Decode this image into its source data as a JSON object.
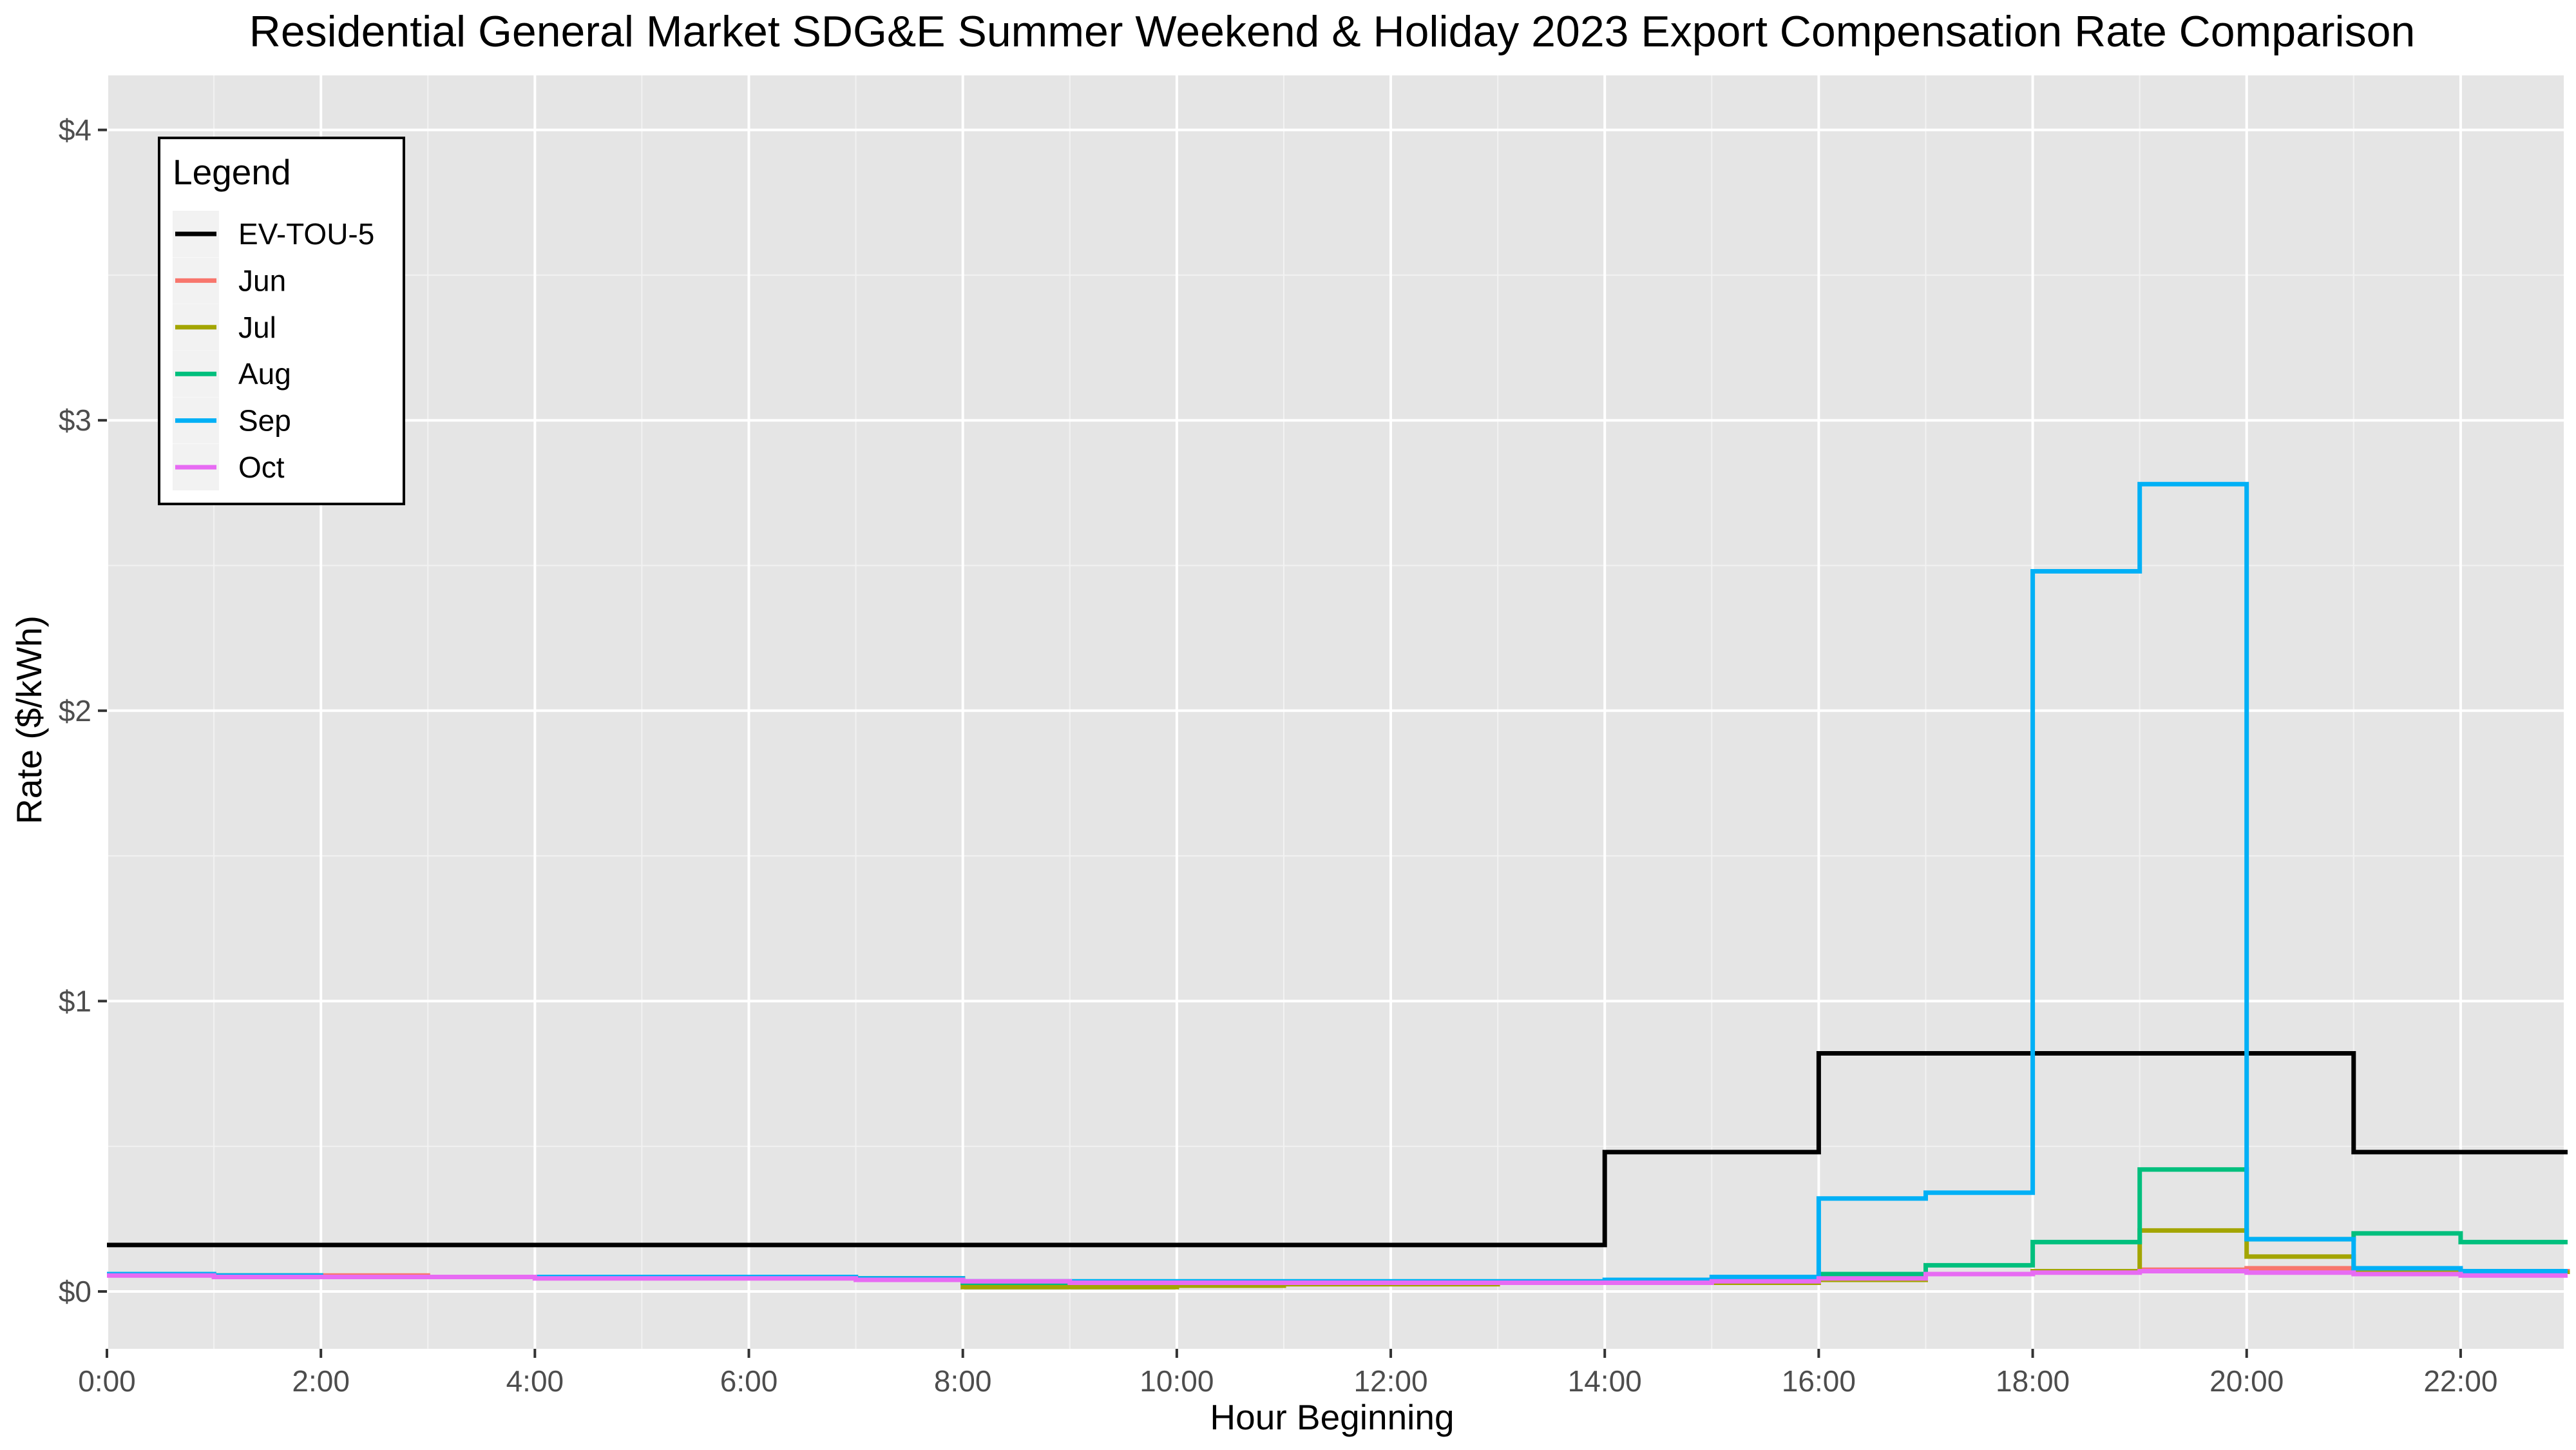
{
  "chart_data": {
    "type": "line",
    "step": true,
    "title": "Residential General Market SDG&E Summer Weekend & Holiday 2023 Export Compensation Rate Comparison",
    "xlabel": "Hour Beginning",
    "ylabel": "Rate ($/kWh)",
    "xlim": [
      0,
      23
    ],
    "ylim": [
      -0.2,
      4.2
    ],
    "x_ticks": [
      0,
      2,
      4,
      6,
      8,
      10,
      12,
      14,
      16,
      18,
      20,
      22
    ],
    "x_tick_labels": [
      "0:00",
      "2:00",
      "4:00",
      "6:00",
      "8:00",
      "10:00",
      "12:00",
      "14:00",
      "16:00",
      "18:00",
      "20:00",
      "22:00"
    ],
    "y_ticks": [
      0,
      1,
      2,
      3,
      4
    ],
    "y_tick_labels": [
      "$0",
      "$1",
      "$2",
      "$3",
      "$4"
    ],
    "grid": true,
    "background": "#e5e5e5",
    "legend": {
      "title": "Legend",
      "position": "top-left"
    },
    "x": [
      0,
      1,
      2,
      3,
      4,
      5,
      6,
      7,
      8,
      9,
      10,
      11,
      12,
      13,
      14,
      15,
      16,
      17,
      18,
      19,
      20,
      21,
      22,
      23
    ],
    "series": [
      {
        "name": "EV-TOU-5",
        "color": "#000000",
        "values": [
          0.16,
          0.16,
          0.16,
          0.16,
          0.16,
          0.16,
          0.16,
          0.16,
          0.16,
          0.16,
          0.16,
          0.16,
          0.16,
          0.16,
          0.48,
          0.48,
          0.82,
          0.82,
          0.82,
          0.82,
          0.82,
          0.48,
          0.48,
          0.48
        ]
      },
      {
        "name": "Jun",
        "color": "#f8766d",
        "values": [
          0.06,
          0.055,
          0.055,
          0.05,
          0.05,
          0.05,
          0.05,
          0.045,
          0.03,
          0.025,
          0.025,
          0.03,
          0.03,
          0.03,
          0.03,
          0.035,
          0.045,
          0.06,
          0.07,
          0.075,
          0.08,
          0.075,
          0.07,
          0.065
        ]
      },
      {
        "name": "Jul",
        "color": "#a3a500",
        "values": [
          0.06,
          0.055,
          0.05,
          0.05,
          0.05,
          0.05,
          0.05,
          0.045,
          0.015,
          0.015,
          0.02,
          0.025,
          0.025,
          0.03,
          0.03,
          0.03,
          0.04,
          0.06,
          0.07,
          0.21,
          0.12,
          0.07,
          0.065,
          0.06
        ]
      },
      {
        "name": "Aug",
        "color": "#00bf7d",
        "values": [
          0.06,
          0.055,
          0.05,
          0.05,
          0.05,
          0.05,
          0.05,
          0.045,
          0.03,
          0.03,
          0.03,
          0.03,
          0.03,
          0.03,
          0.035,
          0.04,
          0.06,
          0.09,
          0.17,
          0.42,
          0.18,
          0.2,
          0.17,
          0.17
        ]
      },
      {
        "name": "Sep",
        "color": "#00b0f6",
        "values": [
          0.06,
          0.055,
          0.05,
          0.05,
          0.05,
          0.05,
          0.05,
          0.045,
          0.035,
          0.035,
          0.035,
          0.035,
          0.035,
          0.035,
          0.04,
          0.05,
          0.32,
          0.34,
          2.48,
          2.78,
          0.18,
          0.08,
          0.07,
          0.07
        ]
      },
      {
        "name": "Oct",
        "color": "#e76bf3",
        "values": [
          0.055,
          0.05,
          0.05,
          0.05,
          0.045,
          0.045,
          0.045,
          0.04,
          0.035,
          0.03,
          0.03,
          0.03,
          0.03,
          0.03,
          0.03,
          0.035,
          0.045,
          0.06,
          0.065,
          0.07,
          0.065,
          0.06,
          0.055,
          0.055
        ]
      }
    ]
  }
}
